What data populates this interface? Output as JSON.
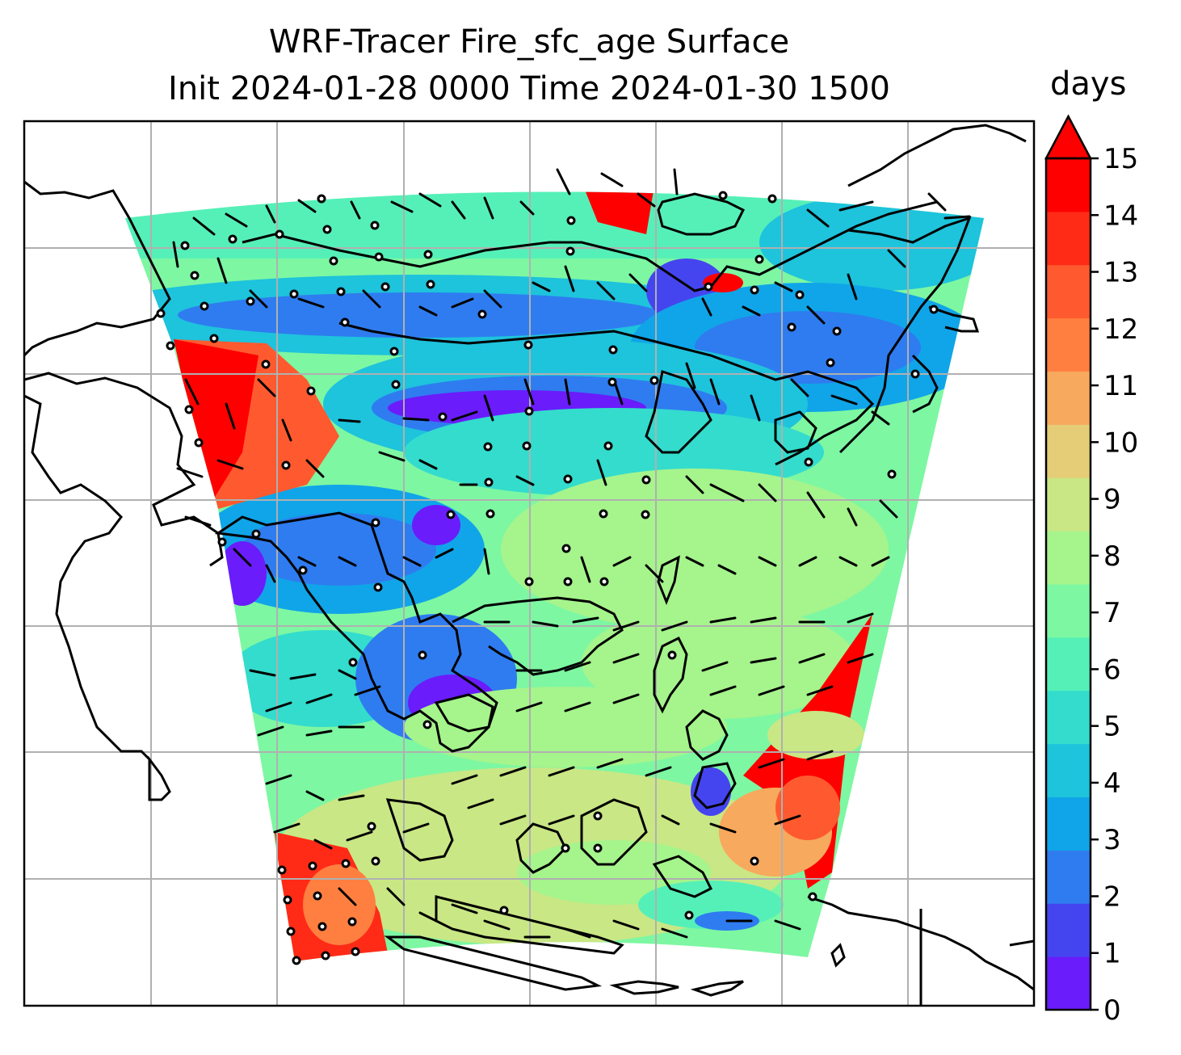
{
  "title": {
    "line1": "WRF-Tracer Fire_sfc_age Surface",
    "line2": "Init 2024-01-28 0000 Time 2024-01-30 1500"
  },
  "colorbar": {
    "label": "days",
    "ticks": [
      "0",
      "1",
      "2",
      "3",
      "4",
      "5",
      "6",
      "7",
      "8",
      "9",
      "10",
      "11",
      "12",
      "13",
      "14",
      "15"
    ],
    "extend": "max",
    "colors": [
      "#6a1cfb",
      "#4545f0",
      "#2f7cf0",
      "#10a5e8",
      "#1ec3dc",
      "#33dccd",
      "#55f0b8",
      "#7df7a2",
      "#a6f48c",
      "#c9e785",
      "#e5cc77",
      "#f7a95d",
      "#ff7f40",
      "#ff5a2f",
      "#ff2b17",
      "#ff0000"
    ]
  },
  "map": {
    "projection": "lat-lon with gridlines",
    "gridlines": true,
    "overlays": [
      "wind-barbs",
      "coastlines"
    ]
  }
}
